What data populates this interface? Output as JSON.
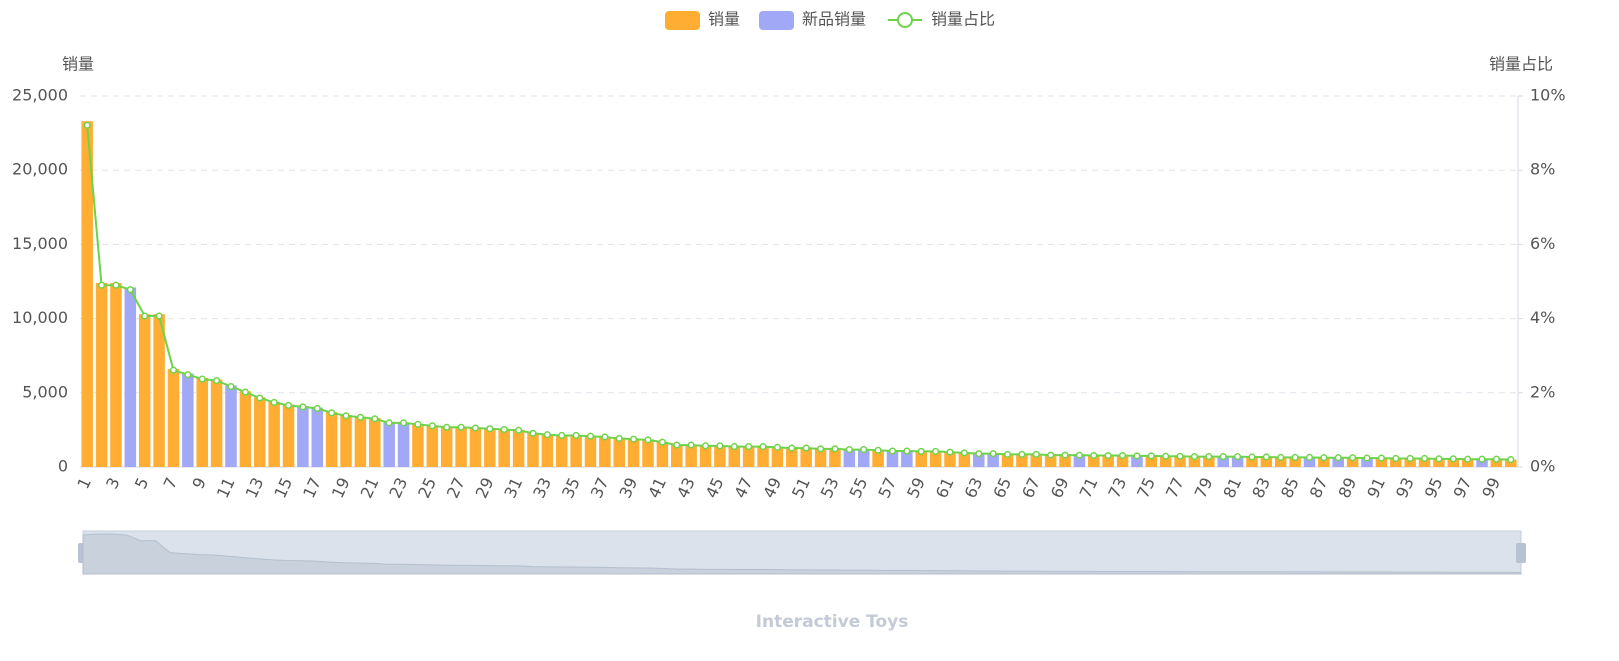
{
  "chart_data": {
    "type": "bar-line",
    "subtitle": "Interactive Toys",
    "y_label": "销量",
    "y2_label": "销量占比",
    "categories": [
      "1",
      null,
      "3",
      null,
      "5",
      null,
      "7",
      null,
      "9",
      null,
      "11",
      null,
      "13",
      null,
      "15",
      null,
      "17",
      null,
      "19",
      null,
      "21",
      null,
      "23",
      null,
      "25",
      null,
      "27",
      null,
      "29",
      null,
      "31",
      null,
      "33",
      null,
      "35",
      null,
      "37",
      null,
      "39",
      null,
      "41",
      null,
      "43",
      null,
      "45",
      null,
      "47",
      null,
      "49",
      null,
      "51",
      null,
      "53",
      null,
      "55",
      null,
      "57",
      null,
      "59",
      null,
      "61",
      null,
      "63",
      null,
      "65",
      null,
      "67",
      null,
      "69",
      null,
      "71",
      null,
      "73",
      null,
      "75",
      null,
      "77",
      null,
      "79",
      null,
      "81",
      null,
      "83",
      null,
      "85",
      null,
      "87",
      null,
      "89",
      null,
      "91",
      null,
      "93",
      null,
      "95",
      null,
      "97",
      null,
      "99",
      null
    ],
    "series": [
      {
        "name": "销量",
        "color": "#ffae33",
        "values": [
          23300,
          12400,
          12400,
          null,
          10300,
          10300,
          6600,
          null,
          6000,
          5900,
          null,
          5100,
          4700,
          4400,
          4200,
          null,
          null,
          3700,
          3500,
          3400,
          3300,
          null,
          null,
          2900,
          2800,
          2700,
          2700,
          2650,
          2600,
          2550,
          2500,
          2300,
          2200,
          2150,
          2150,
          2100,
          2050,
          1950,
          1900,
          1850,
          1700,
          1500,
          1500,
          1450,
          1450,
          1400,
          1400,
          1400,
          1350,
          1300,
          1300,
          1250,
          1250,
          null,
          null,
          1150,
          null,
          null,
          1050,
          1050,
          1000,
          950,
          null,
          null,
          850,
          850,
          850,
          800,
          800,
          null,
          780,
          780,
          780,
          null,
          750,
          740,
          730,
          720,
          710,
          null,
          null,
          690,
          680,
          670,
          660,
          null,
          640,
          null,
          620,
          null,
          600,
          590,
          580,
          570,
          560,
          550,
          540,
          null,
          520,
          500
        ]
      },
      {
        "name": "新品销量",
        "color": "#a1a8f5",
        "values": [
          null,
          null,
          null,
          12100,
          null,
          null,
          null,
          6300,
          null,
          null,
          5500,
          null,
          null,
          null,
          null,
          4100,
          4000,
          null,
          null,
          null,
          null,
          3000,
          3000,
          null,
          null,
          null,
          null,
          null,
          null,
          null,
          null,
          null,
          null,
          null,
          null,
          null,
          null,
          null,
          null,
          null,
          null,
          null,
          null,
          null,
          null,
          null,
          null,
          null,
          null,
          null,
          null,
          null,
          null,
          1200,
          1200,
          null,
          1100,
          1100,
          null,
          null,
          null,
          null,
          900,
          900,
          null,
          null,
          null,
          null,
          null,
          800,
          null,
          null,
          null,
          760,
          null,
          null,
          null,
          null,
          null,
          700,
          700,
          null,
          null,
          null,
          null,
          650,
          null,
          630,
          null,
          610,
          null,
          null,
          null,
          null,
          null,
          null,
          null,
          530,
          null,
          null
        ]
      },
      {
        "name": "销量占比",
        "color": "#6fd34a",
        "axis": "y2",
        "values": [
          9.21,
          4.9,
          4.9,
          4.78,
          4.07,
          4.07,
          2.61,
          2.49,
          2.37,
          2.33,
          2.17,
          2.02,
          1.86,
          1.74,
          1.66,
          1.62,
          1.58,
          1.46,
          1.38,
          1.34,
          1.3,
          1.19,
          1.19,
          1.15,
          1.11,
          1.07,
          1.07,
          1.05,
          1.03,
          1.01,
          0.99,
          0.91,
          0.87,
          0.85,
          0.85,
          0.83,
          0.81,
          0.77,
          0.75,
          0.73,
          0.67,
          0.59,
          0.59,
          0.57,
          0.57,
          0.55,
          0.55,
          0.55,
          0.53,
          0.51,
          0.51,
          0.49,
          0.49,
          0.47,
          0.47,
          0.45,
          0.43,
          0.43,
          0.42,
          0.42,
          0.4,
          0.38,
          0.36,
          0.36,
          0.34,
          0.34,
          0.34,
          0.32,
          0.32,
          0.32,
          0.31,
          0.31,
          0.31,
          0.3,
          0.3,
          0.29,
          0.29,
          0.28,
          0.28,
          0.28,
          0.28,
          0.27,
          0.27,
          0.26,
          0.26,
          0.26,
          0.25,
          0.25,
          0.25,
          0.24,
          0.24,
          0.23,
          0.23,
          0.23,
          0.22,
          0.22,
          0.21,
          0.21,
          0.21,
          0.2
        ]
      }
    ],
    "ylim": [
      0,
      25000
    ],
    "yticks": [
      0,
      {
        "value": 5000,
        "label": "5,000"
      },
      {
        "value": 10000,
        "label": "10,000"
      },
      {
        "value": 15000,
        "label": "15,000"
      },
      {
        "value": 20000,
        "label": "20,000"
      },
      {
        "value": 25000,
        "label": "25,000"
      }
    ],
    "y2lim": [
      0,
      10
    ],
    "y2ticks": [
      {
        "value": 0,
        "label": "0%"
      },
      {
        "value": 2,
        "label": "2%"
      },
      {
        "value": 4,
        "label": "4%"
      },
      {
        "value": 6,
        "label": "6%"
      },
      {
        "value": 8,
        "label": "8%"
      },
      {
        "value": 10,
        "label": "10%"
      }
    ],
    "grid": true
  }
}
